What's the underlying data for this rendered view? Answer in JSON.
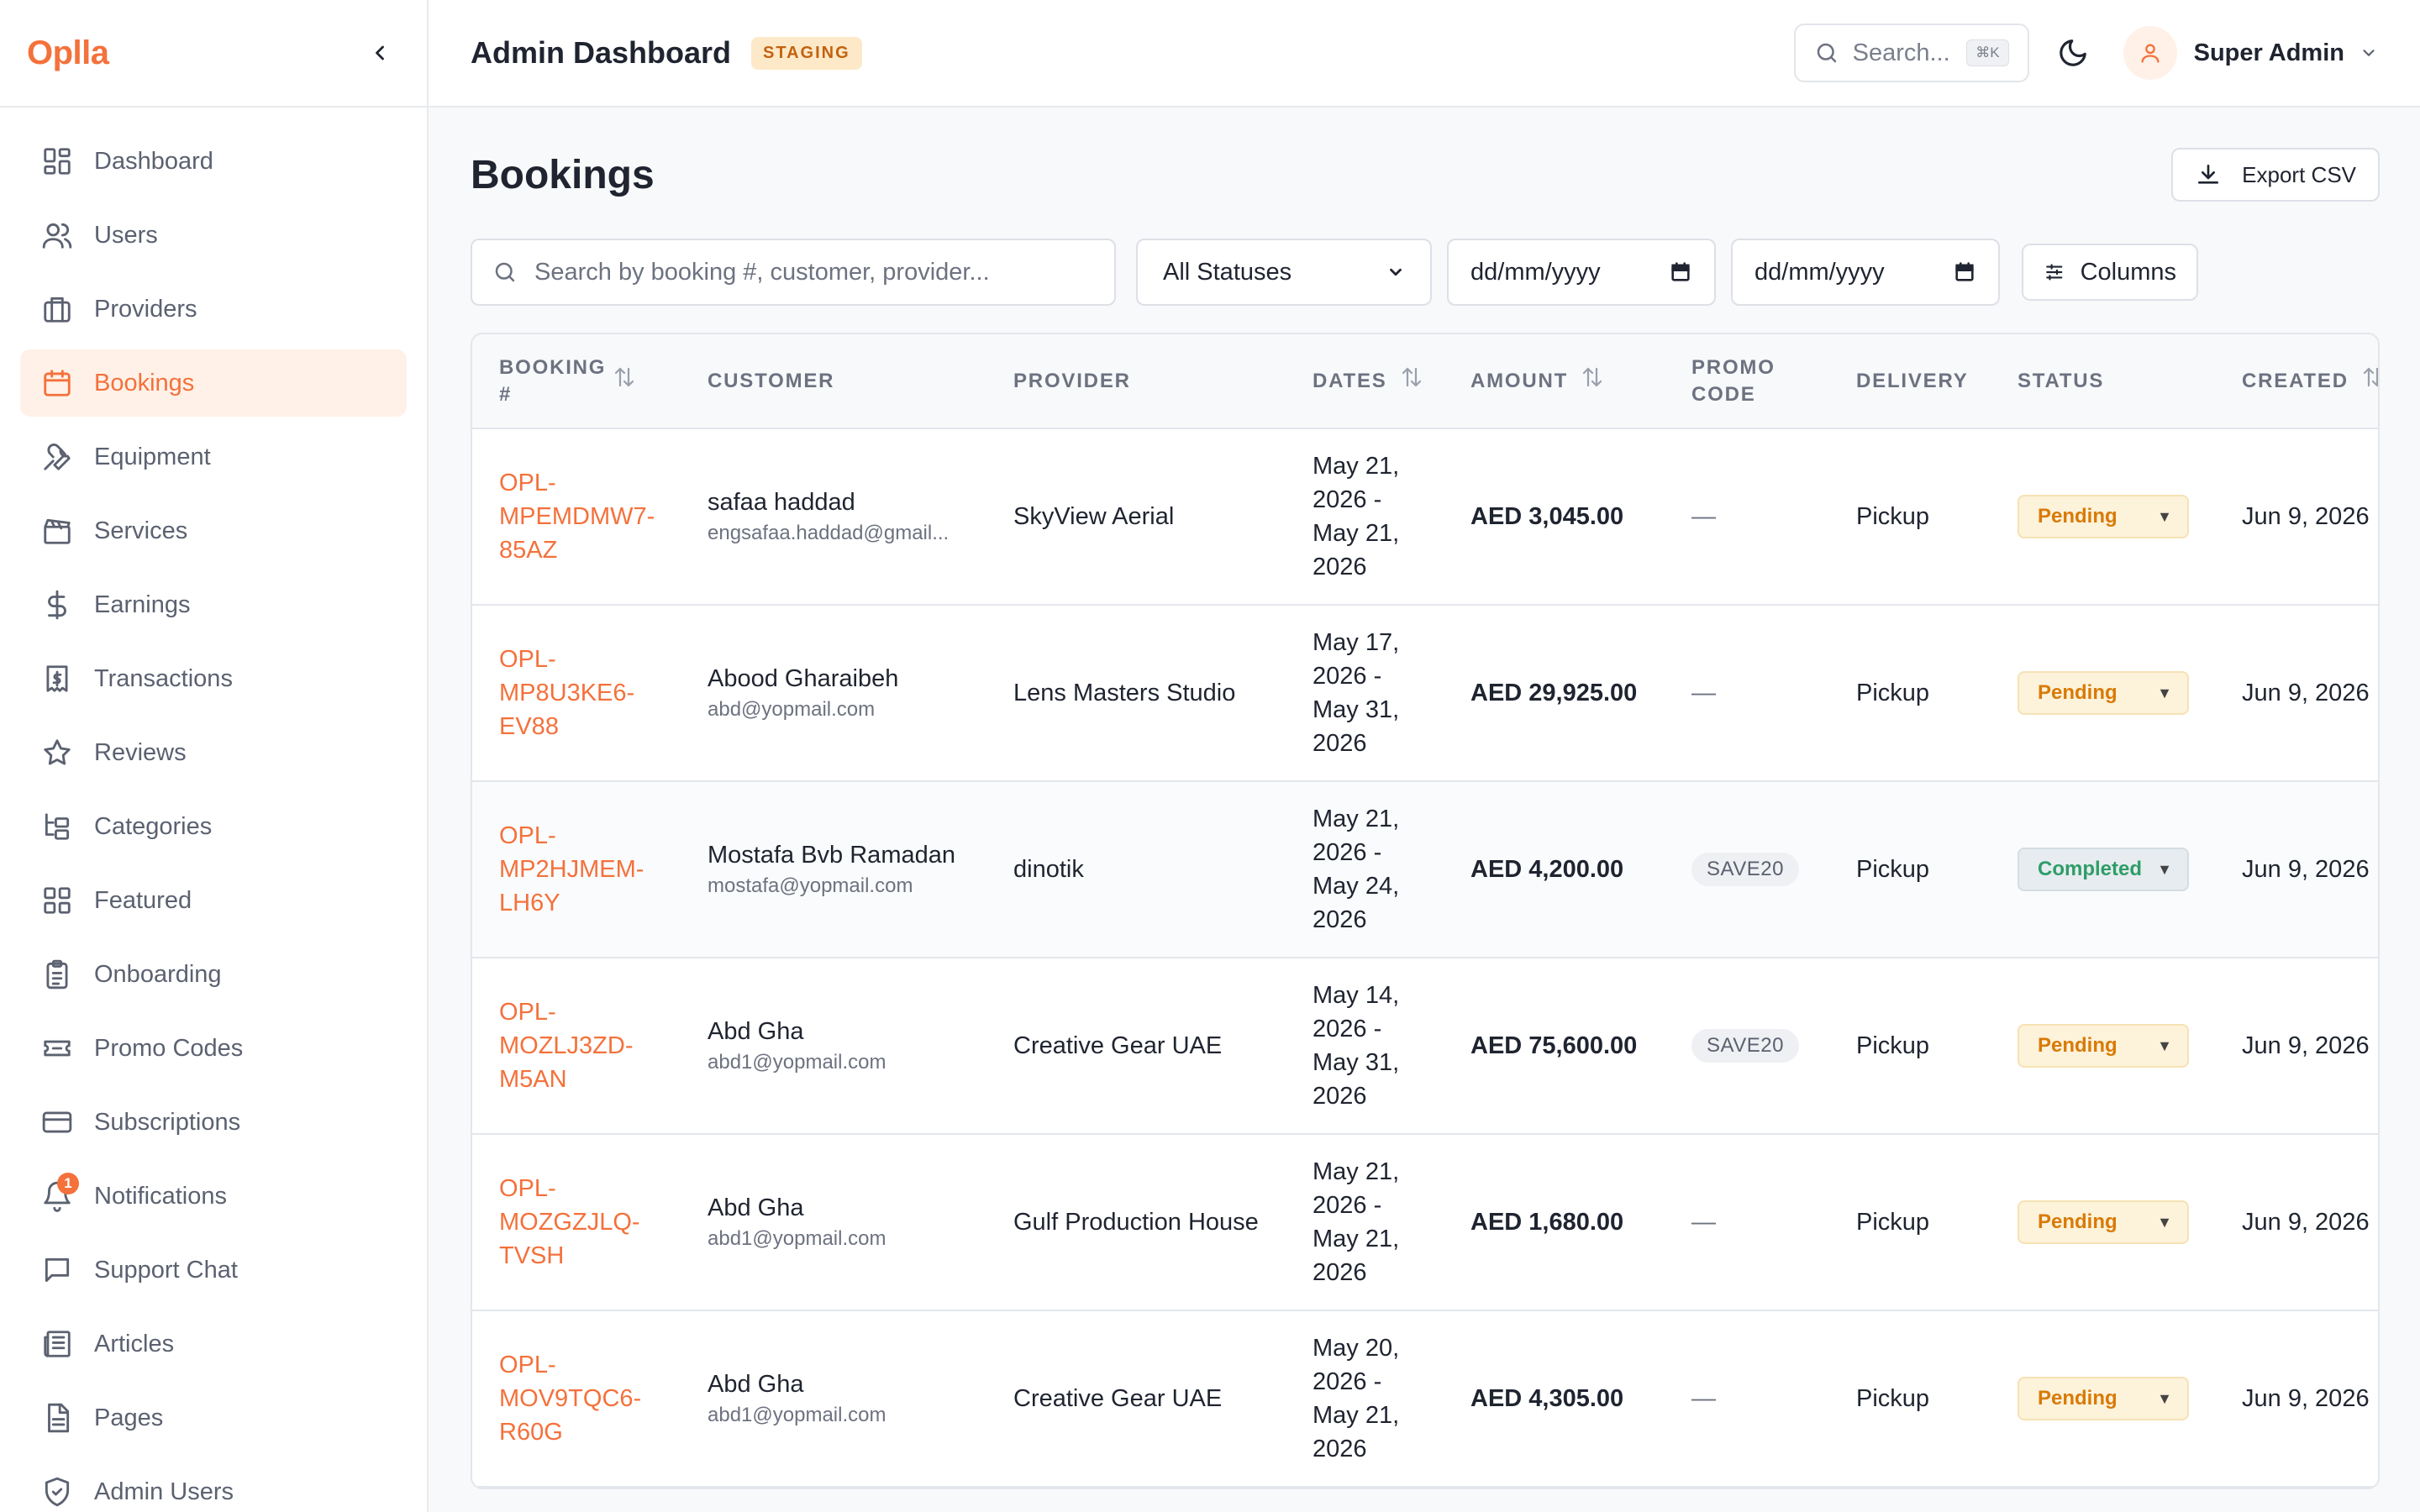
{
  "app": {
    "logo": "Oplla"
  },
  "sidebar": {
    "items": [
      {
        "label": "Dashboard",
        "icon": "dashboard-icon",
        "active": false
      },
      {
        "label": "Users",
        "icon": "users-icon",
        "active": false
      },
      {
        "label": "Providers",
        "icon": "briefcase-icon",
        "active": false
      },
      {
        "label": "Bookings",
        "icon": "calendar-icon",
        "active": true
      },
      {
        "label": "Equipment",
        "icon": "wrench-icon",
        "active": false
      },
      {
        "label": "Services",
        "icon": "clapperboard-icon",
        "active": false
      },
      {
        "label": "Earnings",
        "icon": "dollar-icon",
        "active": false
      },
      {
        "label": "Transactions",
        "icon": "receipt-icon",
        "active": false
      },
      {
        "label": "Reviews",
        "icon": "star-icon",
        "active": false
      },
      {
        "label": "Categories",
        "icon": "folder-tree-icon",
        "active": false
      },
      {
        "label": "Featured",
        "icon": "grid-icon",
        "active": false
      },
      {
        "label": "Onboarding",
        "icon": "clipboard-icon",
        "active": false
      },
      {
        "label": "Promo Codes",
        "icon": "ticket-icon",
        "active": false
      },
      {
        "label": "Subscriptions",
        "icon": "credit-card-icon",
        "active": false
      },
      {
        "label": "Notifications",
        "icon": "bell-icon",
        "active": false,
        "badge": "1"
      },
      {
        "label": "Support Chat",
        "icon": "message-icon",
        "active": false
      },
      {
        "label": "Articles",
        "icon": "newspaper-icon",
        "active": false
      },
      {
        "label": "Pages",
        "icon": "file-icon",
        "active": false
      },
      {
        "label": "Admin Users",
        "icon": "shield-icon",
        "active": false
      }
    ]
  },
  "header": {
    "title": "Admin Dashboard",
    "env_badge": "STAGING",
    "search_placeholder": "Search...",
    "search_shortcut": "⌘K",
    "user_name": "Super Admin"
  },
  "page": {
    "title": "Bookings",
    "export_label": "Export CSV"
  },
  "filters": {
    "search_placeholder": "Search by booking #, customer, provider...",
    "status_value": "All Statuses",
    "date_from": "dd/mm/yyyy",
    "date_to": "dd/mm/yyyy",
    "columns_label": "Columns"
  },
  "table": {
    "columns": [
      "BOOKING #",
      "CUSTOMER",
      "PROVIDER",
      "DATES",
      "AMOUNT",
      "PROMO CODE",
      "DELIVERY",
      "STATUS",
      "CREATED"
    ],
    "rows": [
      {
        "booking_lines": [
          "OPL-",
          "MPEMDMW7-",
          "85AZ"
        ],
        "customer_name": "safaa haddad",
        "customer_email": "engsafaa.haddad@gmail...",
        "provider": "SkyView Aerial",
        "dates_lines": [
          "May 21,",
          "2026 -",
          "May 21,",
          "2026"
        ],
        "amount": "AED 3,045.00",
        "promo": "—",
        "delivery": "Pickup",
        "status": "Pending",
        "created": "Jun 9, 2026"
      },
      {
        "booking_lines": [
          "OPL-",
          "MP8U3KE6-",
          "EV88"
        ],
        "customer_name": "Abood Gharaibeh",
        "customer_email": "abd@yopmail.com",
        "provider": "Lens Masters Studio",
        "dates_lines": [
          "May 17,",
          "2026 -",
          "May 31,",
          "2026"
        ],
        "amount": "AED 29,925.00",
        "promo": "—",
        "delivery": "Pickup",
        "status": "Pending",
        "created": "Jun 9, 2026"
      },
      {
        "booking_lines": [
          "OPL-",
          "MP2HJMEM-",
          "LH6Y"
        ],
        "customer_name": "Mostafa Bvb Ramadan",
        "customer_email": "mostafa@yopmail.com",
        "provider": "dinotik",
        "dates_lines": [
          "May 21,",
          "2026 -",
          "May 24,",
          "2026"
        ],
        "amount": "AED 4,200.00",
        "promo": "SAVE20",
        "delivery": "Pickup",
        "status": "Completed",
        "created": "Jun 9, 2026"
      },
      {
        "booking_lines": [
          "OPL-",
          "MOZLJ3ZD-",
          "M5AN"
        ],
        "customer_name": "Abd Gha",
        "customer_email": "abd1@yopmail.com",
        "provider": "Creative Gear UAE",
        "dates_lines": [
          "May 14,",
          "2026 -",
          "May 31,",
          "2026"
        ],
        "amount": "AED 75,600.00",
        "promo": "SAVE20",
        "delivery": "Pickup",
        "status": "Pending",
        "created": "Jun 9, 2026"
      },
      {
        "booking_lines": [
          "OPL-",
          "MOZGZJLQ-",
          "TVSH"
        ],
        "customer_name": "Abd Gha",
        "customer_email": "abd1@yopmail.com",
        "provider": "Gulf Production House",
        "dates_lines": [
          "May 21,",
          "2026 -",
          "May 21,",
          "2026"
        ],
        "amount": "AED 1,680.00",
        "promo": "—",
        "delivery": "Pickup",
        "status": "Pending",
        "created": "Jun 9, 2026"
      },
      {
        "booking_lines": [
          "OPL-",
          "MOV9TQC6-",
          "R60G"
        ],
        "customer_name": "Abd Gha",
        "customer_email": "abd1@yopmail.com",
        "provider": "Creative Gear UAE",
        "dates_lines": [
          "May 20,",
          "2026 -",
          "May 21,",
          "2026"
        ],
        "amount": "AED 4,305.00",
        "promo": "—",
        "delivery": "Pickup",
        "status": "Pending",
        "created": "Jun 9, 2026"
      }
    ]
  },
  "colors": {
    "accent": "#f4713b",
    "pending_bg": "#fdf2da",
    "pending_text": "#d97a06",
    "completed_text": "#2f9d68"
  }
}
